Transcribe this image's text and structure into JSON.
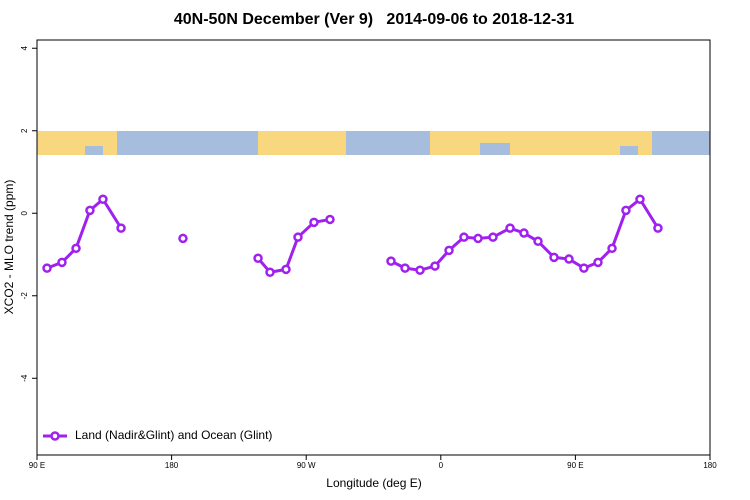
{
  "chart_data": {
    "type": "line",
    "title": "40N-50N December (Ver 9)   2014-09-06 to 2018-12-31",
    "x_label": "Longitude (deg E)",
    "y_label": "XCO2 - MLO trend (ppm)",
    "xlim": [
      90,
      540
    ],
    "ylim": [
      -5.86,
      4.2
    ],
    "xticks": [
      {
        "value": 90,
        "label": "90 E"
      },
      180,
      {
        "value": 270,
        "label": "90 W"
      },
      {
        "value": 360,
        "label": "0"
      },
      {
        "value": 450,
        "label": "90 E"
      },
      {
        "value": 540,
        "label": "180"
      }
    ],
    "yticks": [
      -4,
      -2,
      0,
      2,
      4
    ],
    "legend": "lower left",
    "x": [
      96.7,
      106.7,
      116.1,
      125.4,
      134.1,
      146.2,
      165,
      187.6,
      210,
      237.8,
      245.8,
      256.5,
      264.5,
      275.2,
      285.9,
      305,
      326.7,
      336.1,
      346.1,
      356.1,
      365.5,
      375.5,
      384.9,
      394.9,
      406.3,
      415.6,
      425,
      435.7,
      445.7,
      455.7,
      465.1,
      474.5,
      483.8,
      493.2,
      505.2
    ],
    "series": [
      {
        "name": "Land (Nadir&Glint) and Ocean (Glint)",
        "color": "#a020f0",
        "values": [
          -1.33,
          -1.19,
          -0.85,
          0.07,
          0.34,
          -0.36,
          null,
          -0.61,
          null,
          -1.09,
          -1.43,
          -1.36,
          -0.58,
          -0.22,
          -0.15,
          null,
          -1.16,
          -1.33,
          -1.38,
          -1.28,
          -0.9,
          -0.58,
          -0.61,
          -0.58,
          -0.36,
          -0.48,
          -0.68,
          -1.07,
          -1.11,
          -1.33,
          -1.19,
          -0.85,
          0.07,
          0.34,
          -0.36
        ]
      }
    ]
  }
}
